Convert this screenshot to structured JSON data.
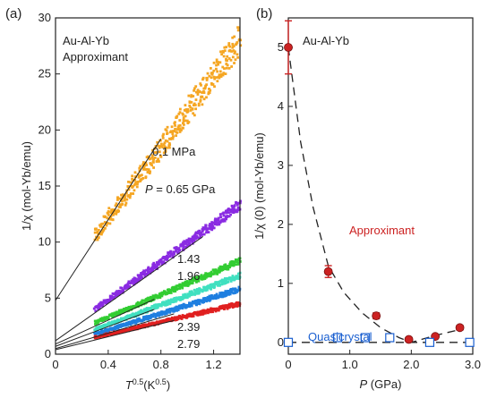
{
  "chart_data": [
    {
      "type": "scatter",
      "panel_label": "(a)",
      "title_lines": [
        "Au-Al-Yb",
        "Approximant"
      ],
      "xlabel": {
        "base": "T",
        "exp": "0.5",
        "unit_base": "(K",
        "unit_exp": "0.5",
        "unit_close": ")"
      },
      "ylabel": "1/χ (mol-Yb/emu)",
      "xlim": [
        0,
        1.4
      ],
      "ylim": [
        0,
        30
      ],
      "xticks": [
        "0",
        "0.4",
        "0.8",
        "1.2"
      ],
      "xtick_values": [
        0,
        0.4,
        0.8,
        1.2
      ],
      "yticks": [
        "0",
        "5",
        "10",
        "15",
        "20",
        "25",
        "30"
      ],
      "ytick_values": [
        0,
        5,
        10,
        15,
        20,
        25,
        30
      ],
      "series": [
        {
          "pressure_label": "0.1 MPa",
          "color": "#f5a623",
          "x_range": [
            0.3,
            1.4
          ],
          "y_start": 10.5,
          "y_end": 28.0,
          "noise": 1.1,
          "fit": [
            [
              0,
              4.8
            ],
            [
              0.8,
              19.2
            ]
          ]
        },
        {
          "pressure_label": "0.65 GPa",
          "color": "#8a2be2",
          "x_range": [
            0.3,
            1.4
          ],
          "y_start": 4.0,
          "y_end": 13.3,
          "noise": 0.35,
          "fit": [
            [
              0,
              1.2
            ],
            [
              1.12,
              10.5
            ]
          ]
        },
        {
          "pressure_label": "1.43",
          "color": "#32cd32",
          "x_range": [
            0.3,
            1.4
          ],
          "y_start": 2.8,
          "y_end": 8.3,
          "noise": 0.22,
          "fit": [
            [
              0,
              0.9
            ],
            [
              0.75,
              4.9
            ]
          ]
        },
        {
          "pressure_label": "1.96",
          "color": "#40e0c0",
          "x_range": [
            0.3,
            1.4
          ],
          "y_start": 2.2,
          "y_end": 7.0,
          "noise": 0.2,
          "fit": [
            [
              0,
              0.7
            ],
            [
              0.75,
              4.0
            ]
          ]
        },
        {
          "pressure_label": "2.39",
          "color": "#1e7fe0",
          "x_range": [
            0.3,
            1.4
          ],
          "y_start": 1.8,
          "y_end": 5.8,
          "noise": 0.18,
          "fit": [
            [
              0,
              0.5
            ],
            [
              0.9,
              3.6
            ]
          ]
        },
        {
          "pressure_label": "2.79",
          "color": "#e02020",
          "x_range": [
            0.3,
            1.4
          ],
          "y_start": 1.5,
          "y_end": 4.5,
          "noise": 0.15,
          "fit": [
            [
              0,
              0.4
            ],
            [
              0.9,
              3.0
            ]
          ]
        }
      ],
      "annotations": {
        "p_prefix": "P",
        "p_equals": " = "
      }
    },
    {
      "type": "scatter",
      "panel_label": "(b)",
      "title": "Au-Al-Yb",
      "xlabel": {
        "base": "P",
        "unit": " (GPa)"
      },
      "ylabel": "1/χ (0) (mol-Yb/emu)",
      "xlim": [
        0,
        3.0
      ],
      "ylim": [
        -0.2,
        5.5
      ],
      "xticks": [
        "0",
        "1.0",
        "2.0",
        "3.0"
      ],
      "xtick_values": [
        0,
        1.0,
        2.0,
        3.0
      ],
      "yticks": [
        "0",
        "1",
        "2",
        "3",
        "4",
        "5"
      ],
      "ytick_values": [
        0,
        1,
        2,
        3,
        4,
        5
      ],
      "series": [
        {
          "name": "Approximant",
          "color": "#cc2222",
          "marker": "circle",
          "points": [
            {
              "x": 0.0,
              "y": 5.0,
              "err": 0.45
            },
            {
              "x": 0.65,
              "y": 1.2,
              "err": 0.1
            },
            {
              "x": 1.43,
              "y": 0.45,
              "err": 0.05
            },
            {
              "x": 1.96,
              "y": 0.05,
              "err": 0.0
            },
            {
              "x": 2.39,
              "y": 0.1,
              "err": 0.0
            },
            {
              "x": 2.79,
              "y": 0.25,
              "err": 0.04
            }
          ],
          "guide": [
            [
              0.0,
              5.0
            ],
            [
              0.2,
              3.4
            ],
            [
              0.4,
              2.3
            ],
            [
              0.65,
              1.3
            ],
            [
              0.9,
              0.85
            ],
            [
              1.2,
              0.5
            ],
            [
              1.5,
              0.25
            ],
            [
              1.8,
              0.08
            ],
            [
              2.0,
              0.0
            ],
            [
              2.4,
              0.12
            ],
            [
              2.8,
              0.22
            ]
          ]
        },
        {
          "name": "Quasicrystal",
          "color": "#1a5fd0",
          "marker": "square-open",
          "points": [
            {
              "x": 0.0,
              "y": 0.0
            },
            {
              "x": 0.8,
              "y": 0.08
            },
            {
              "x": 1.25,
              "y": 0.08
            },
            {
              "x": 1.65,
              "y": 0.08
            },
            {
              "x": 2.3,
              "y": 0.0
            },
            {
              "x": 2.95,
              "y": 0.0
            }
          ],
          "guide": [
            [
              0.0,
              0.0
            ],
            [
              3.0,
              0.0
            ]
          ]
        }
      ]
    }
  ]
}
